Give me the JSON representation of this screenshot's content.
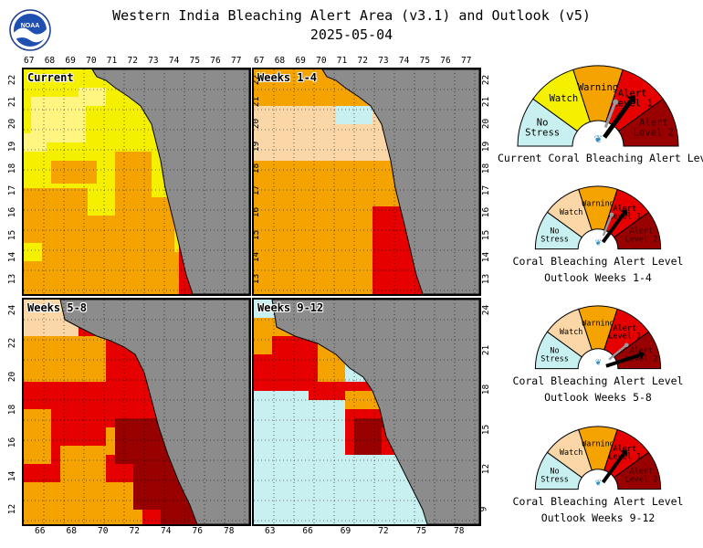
{
  "page": {
    "title_line1": "Western India Bleaching Alert Area (v3.1) and Outlook (v5)",
    "title_line2": "2025-05-04",
    "logo_text": "NOAA"
  },
  "colors": {
    "no_stress": "#c8f0f0",
    "watch_outlook": "#fbd7a8",
    "watch_current": "#f5f000",
    "warning": "#f5a300",
    "alert1": "#e60000",
    "alert2": "#990000",
    "land": "#8c8c8c",
    "lite_yellow": "#fff580"
  },
  "maps": [
    {
      "id": "current",
      "label": "Current",
      "top_ticks": [
        "67",
        "68",
        "69",
        "70",
        "71",
        "72",
        "73",
        "74",
        "75",
        "76",
        "77"
      ],
      "right_ticks": [
        "22",
        "21",
        "20",
        "19",
        "18",
        "17",
        "16",
        "15",
        "14",
        "13"
      ],
      "bottom_ticks": [],
      "left_ticks": [
        "22",
        "21",
        "20",
        "19",
        "18",
        "17",
        "16",
        "15",
        "14",
        "13"
      ]
    },
    {
      "id": "weeks1-4",
      "label": "Weeks 1-4",
      "top_ticks": [
        "67",
        "68",
        "69",
        "70",
        "71",
        "72",
        "73",
        "74",
        "75",
        "76",
        "77"
      ],
      "right_ticks": [
        "22",
        "21",
        "20",
        "19",
        "18",
        "17",
        "16",
        "15",
        "14",
        "13"
      ],
      "bottom_ticks": [],
      "left_ticks": []
    },
    {
      "id": "weeks5-8",
      "label": "Weeks 5-8",
      "top_ticks": [],
      "right_ticks": [],
      "bottom_ticks": [
        "66",
        "68",
        "70",
        "72",
        "74",
        "76",
        "78"
      ],
      "left_ticks": [
        "24",
        "22",
        "20",
        "18",
        "16",
        "14",
        "12"
      ]
    },
    {
      "id": "weeks9-12",
      "label": "Weeks 9-12",
      "top_ticks": [],
      "right_ticks": [
        "24",
        "21",
        "18",
        "15",
        "12",
        "9"
      ],
      "bottom_ticks": [
        "63",
        "66",
        "69",
        "72",
        "75",
        "78"
      ],
      "left_ticks": []
    }
  ],
  "gauges": [
    {
      "id": "current",
      "labels": [
        "No\nStress",
        "Watch",
        "Warning",
        "Alert\nLevel 1",
        "Alert\nLevel 2"
      ],
      "watch_color": "#f5f000",
      "needle_level": 3,
      "prev_level": 2.6,
      "title": "Current Coral Bleaching Alert Level",
      "subtitle": ""
    },
    {
      "id": "weeks1-4",
      "labels": [
        "No\nStress",
        "Watch",
        "Warning",
        "Alert\nLevel 1",
        "Alert\nLevel 2"
      ],
      "watch_color": "#fbd7a8",
      "needle_level": 3,
      "prev_level": 2.6,
      "title": "Coral Bleaching Alert Level",
      "subtitle": "Outlook Weeks 1-4"
    },
    {
      "id": "weeks5-8",
      "labels": [
        "No\nStress",
        "Watch",
        "Warning",
        "Alert\nLevel 1",
        "Alert\nLevel 2"
      ],
      "watch_color": "#fbd7a8",
      "needle_level": 4,
      "prev_level": 3.4,
      "title": "Coral Bleaching Alert Level",
      "subtitle": "Outlook Weeks 5-8"
    },
    {
      "id": "weeks9-12",
      "labels": [
        "No\nStress",
        "Watch",
        "Warning",
        "Alert\nLevel 1",
        "Alert\nLevel 2"
      ],
      "watch_color": "#fbd7a8",
      "needle_level": 3,
      "prev_level": null,
      "title": "Coral Bleaching Alert Level",
      "subtitle": "Outlook Weeks 9-12"
    }
  ]
}
